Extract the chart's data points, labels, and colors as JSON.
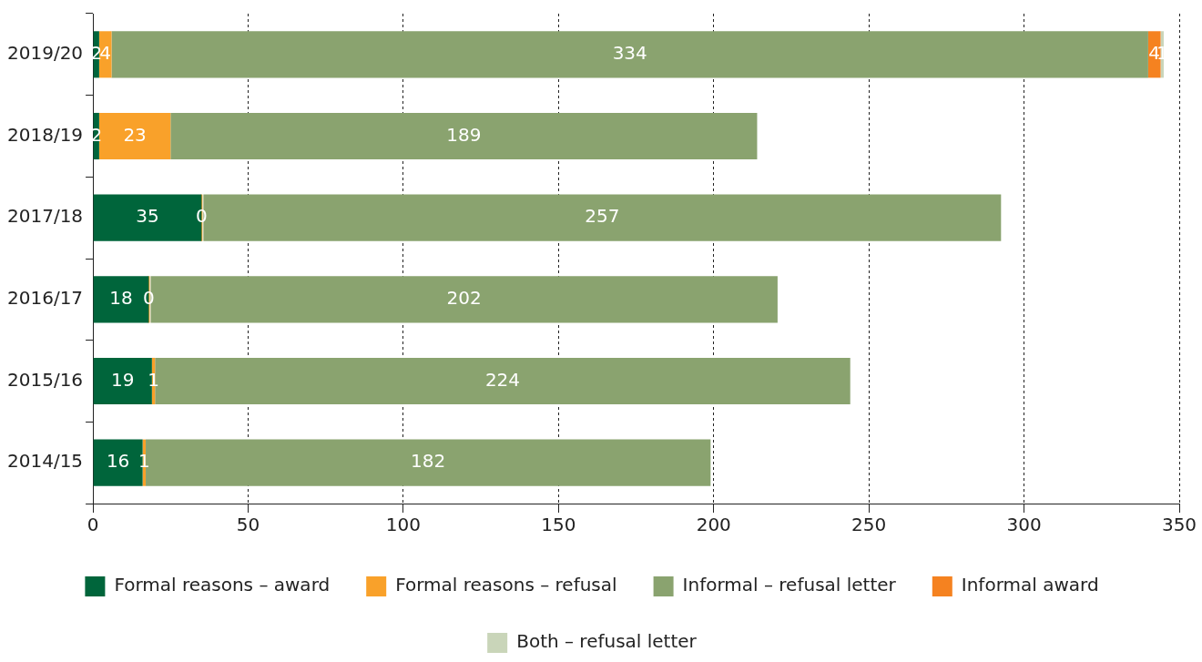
{
  "chart_data": {
    "type": "bar",
    "orientation": "horizontal",
    "stacked": true,
    "categories": [
      "2019/20",
      "2018/19",
      "2017/18",
      "2016/17",
      "2015/16",
      "2014/15"
    ],
    "series": [
      {
        "name": "Formal reasons – award",
        "color": "#00653b",
        "values": [
          2,
          2,
          35,
          18,
          19,
          16
        ],
        "value_labels": [
          "2",
          "2",
          "35",
          "18",
          "19",
          "16"
        ]
      },
      {
        "name": "Formal reasons – refusal",
        "color": "#f9a12a",
        "values": [
          4,
          23,
          0,
          0,
          1,
          1
        ],
        "value_labels": [
          "4",
          "23",
          "0",
          "0",
          "1",
          "1"
        ]
      },
      {
        "name": "Informal – refusal letter",
        "color": "#8aa36f",
        "values": [
          334,
          189,
          257,
          202,
          224,
          182
        ],
        "value_labels": [
          "334",
          "189",
          "257",
          "202",
          "224",
          "182"
        ]
      },
      {
        "name": "Informal award",
        "color": "#f58220",
        "values": [
          4,
          null,
          null,
          null,
          null,
          null
        ],
        "value_labels": [
          "4",
          null,
          null,
          null,
          null,
          null
        ]
      },
      {
        "name": "Both – refusal letter",
        "color": "#c9d5b9",
        "values": [
          1,
          null,
          null,
          null,
          null,
          null
        ],
        "value_labels": [
          "1",
          null,
          null,
          null,
          null,
          null
        ]
      }
    ],
    "xlim": [
      0,
      350
    ],
    "xticks": [
      0,
      50,
      100,
      150,
      200,
      250,
      300,
      350
    ],
    "grid": "x",
    "legend": "bottom"
  }
}
